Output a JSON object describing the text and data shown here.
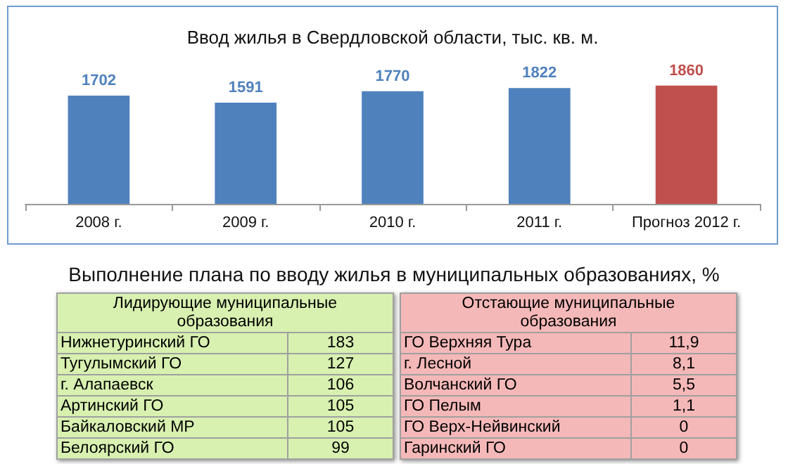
{
  "chart_data": [
    {
      "type": "bar",
      "title": "Ввод жилья в Свердловской области, тыс. кв. м.",
      "categories": [
        "2008 г.",
        "2009 г.",
        "2010 г.",
        "2011 г.",
        "Прогноз 2012 г."
      ],
      "values": [
        1702,
        1591,
        1770,
        1822,
        1860
      ],
      "colors": [
        "#4f81bd",
        "#4f81bd",
        "#4f81bd",
        "#4f81bd",
        "#c0504d"
      ],
      "data_labels": true,
      "tick_labels": "x"
    },
    {
      "type": "other",
      "title": "Выполнение плана по вводу жилья в муниципальных образованиях, %",
      "subtitle": "Лидирующие муниципальные образования",
      "color": "#d8f0b0",
      "data_labels": true,
      "categories": [
        "Нижнетуринский ГО",
        "Тугулымский ГО",
        "г. Алапаевск",
        "Артинский ГО",
        "Байкаловский МР",
        "Белоярский ГО"
      ],
      "values": [
        183,
        127,
        106,
        105,
        105,
        99
      ]
    },
    {
      "type": "other",
      "subtitle": "Отстающие муниципальные образования",
      "color": "#f5b8b8",
      "value_labels": [
        "11,9",
        "8,1",
        "5,5",
        "1,1",
        "0",
        "0"
      ],
      "categories": [
        "ГО Верхняя Тура",
        "г. Лесной",
        "Волчанский ГО",
        "ГО Пелым",
        "ГО Верх-Нейвинский",
        "Гаринский ГО"
      ],
      "values": [
        11.9,
        8.1,
        5.5,
        1.1,
        0,
        0
      ]
    }
  ]
}
